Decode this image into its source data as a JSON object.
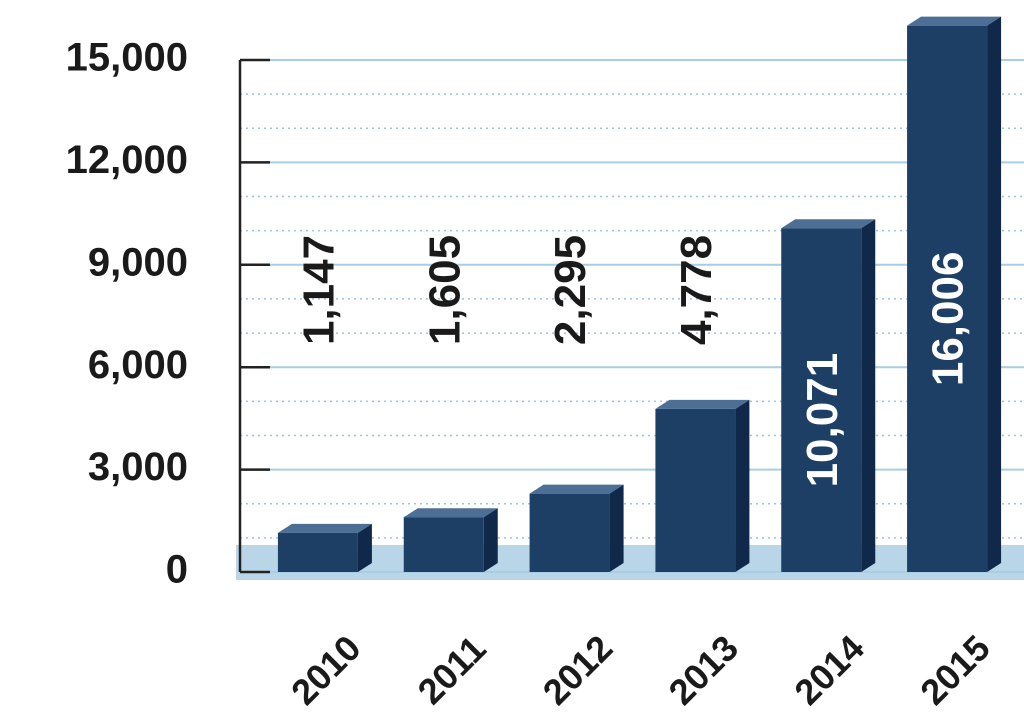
{
  "chart_data": {
    "type": "bar",
    "categories": [
      "2010",
      "2011",
      "2012",
      "2013",
      "2014",
      "2015"
    ],
    "values": [
      1147,
      1605,
      2295,
      4778,
      10071,
      16006
    ],
    "value_labels": [
      "1,147",
      "1,605",
      "2,295",
      "4,778",
      "10,071",
      "16,006"
    ],
    "color": "#1d3f66",
    "ylim": [
      0,
      15000
    ],
    "yticks": [
      0,
      {
        "value": 3000,
        "label": "3,000"
      },
      {
        "value": 6000,
        "label": "6,000"
      },
      {
        "value": 9000,
        "label": "9,000"
      },
      {
        "value": 12000,
        "label": "12,000"
      },
      {
        "value": 15000,
        "label": "15,000"
      }
    ],
    "minor_yticks": [
      1000,
      2000,
      4000,
      5000,
      7000,
      8000,
      10000,
      11000,
      13000,
      14000
    ],
    "grid": true
  }
}
